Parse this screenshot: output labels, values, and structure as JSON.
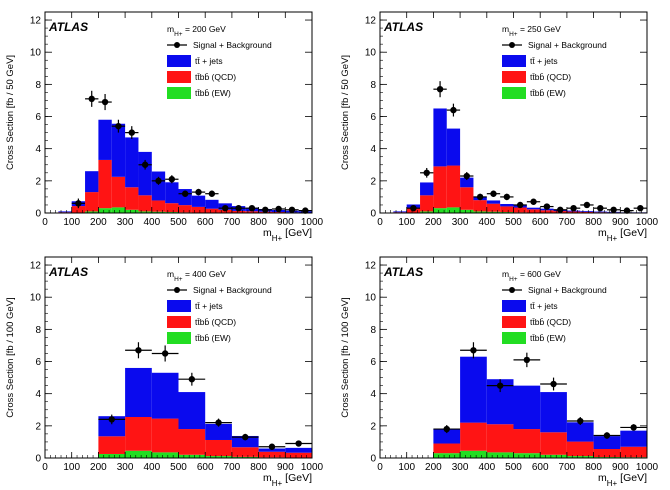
{
  "chart_data": [
    {
      "type": "bar",
      "stacked": true,
      "panel_label": "ATLAS",
      "mass_label": "m_H+ = 200 GeV",
      "mass_label_text": "m",
      "mass_label_sub": "H+",
      "mass_label_value": " = 200 GeV",
      "xlabel": "m",
      "xlabel_sub": "H+",
      "xlabel_unit": " [GeV]",
      "ylabel": "Cross Section [fb / 50 GeV]",
      "xlim": [
        0,
        1000
      ],
      "ylim": [
        0,
        12.5
      ],
      "xticks": [
        0,
        100,
        200,
        300,
        400,
        500,
        600,
        700,
        800,
        900,
        1000
      ],
      "yticks": [
        0,
        2,
        4,
        6,
        8,
        10,
        12
      ],
      "bin_edges": [
        0,
        50,
        100,
        150,
        200,
        250,
        300,
        350,
        400,
        450,
        500,
        550,
        600,
        650,
        700,
        750,
        800,
        850,
        900,
        950,
        1000
      ],
      "series": [
        {
          "name": "tt̄bb̄ (EW)",
          "color": "#22dd22",
          "values": [
            0,
            0,
            0.03,
            0.1,
            0.3,
            0.35,
            0.2,
            0.1,
            0.08,
            0.06,
            0.04,
            0.03,
            0.02,
            0.02,
            0.01,
            0.01,
            0.01,
            0.01,
            0,
            0
          ]
        },
        {
          "name": "tt̄bb̄ (QCD)",
          "color": "#ff1414",
          "values": [
            0,
            0.05,
            0.4,
            1.2,
            3.0,
            1.9,
            1.4,
            1.0,
            0.7,
            0.55,
            0.45,
            0.35,
            0.25,
            0.18,
            0.12,
            0.1,
            0.07,
            0.05,
            0.04,
            0.03
          ]
        },
        {
          "name": "tt̄ + jets",
          "color": "#0a0aee",
          "values": [
            0,
            0.05,
            0.3,
            1.3,
            2.5,
            3.3,
            3.1,
            2.7,
            1.8,
            1.3,
            1.0,
            0.7,
            0.55,
            0.4,
            0.3,
            0.22,
            0.17,
            0.13,
            0.1,
            0.08
          ]
        }
      ],
      "data_points": {
        "name": "Signal + Background",
        "x": [
          125,
          175,
          225,
          275,
          325,
          375,
          425,
          475,
          525,
          575,
          625,
          675,
          725,
          775,
          825,
          875,
          925,
          975
        ],
        "y": [
          0.6,
          7.1,
          6.9,
          5.4,
          5.0,
          3.0,
          2.0,
          2.1,
          1.2,
          1.3,
          1.2,
          0.3,
          0.3,
          0.3,
          0.2,
          0.25,
          0.2,
          0.15
        ],
        "yerr": [
          0.3,
          0.5,
          0.5,
          0.4,
          0.4,
          0.3,
          0.25,
          0.25,
          0.2,
          0.2,
          0.2,
          0.1,
          0.1,
          0.1,
          0.1,
          0.1,
          0.1,
          0.1
        ]
      },
      "legend": {
        "items": [
          "Signal + Background",
          "tt̄ + jets",
          "tt̄bb̄ (QCD)",
          "tt̄bb̄ (EW)"
        ]
      }
    },
    {
      "type": "bar",
      "stacked": true,
      "panel_label": "ATLAS",
      "mass_label": "m_H+ = 250 GeV",
      "mass_label_text": "m",
      "mass_label_sub": "H+",
      "mass_label_value": " = 250 GeV",
      "xlabel": "m",
      "xlabel_sub": "H+",
      "xlabel_unit": " [GeV]",
      "ylabel": "Cross Section [fb / 50 GeV]",
      "xlim": [
        0,
        1000
      ],
      "ylim": [
        0,
        12.5
      ],
      "xticks": [
        0,
        100,
        200,
        300,
        400,
        500,
        600,
        700,
        800,
        900,
        1000
      ],
      "yticks": [
        0,
        2,
        4,
        6,
        8,
        10,
        12
      ],
      "bin_edges": [
        0,
        50,
        100,
        150,
        200,
        250,
        300,
        350,
        400,
        450,
        500,
        550,
        600,
        650,
        700,
        750,
        800,
        850,
        900,
        950,
        1000
      ],
      "series": [
        {
          "name": "tt̄bb̄ (EW)",
          "color": "#22dd22",
          "values": [
            0,
            0,
            0.03,
            0.1,
            0.3,
            0.35,
            0.2,
            0.1,
            0.08,
            0.06,
            0.04,
            0.03,
            0.02,
            0.02,
            0.01,
            0.01,
            0.01,
            0.01,
            0,
            0
          ]
        },
        {
          "name": "tt̄bb̄ (QCD)",
          "color": "#ff1414",
          "values": [
            0,
            0.05,
            0.3,
            1.0,
            2.6,
            2.6,
            1.4,
            0.7,
            0.5,
            0.35,
            0.3,
            0.2,
            0.15,
            0.1,
            0.08,
            0.06,
            0.04,
            0.03,
            0.02,
            0.02
          ]
        },
        {
          "name": "tt̄ + jets",
          "color": "#0a0aee",
          "values": [
            0,
            0.05,
            0.2,
            0.8,
            3.6,
            2.3,
            0.6,
            0.2,
            0.2,
            0.15,
            0.15,
            0.1,
            0.1,
            0.08,
            0.06,
            0.05,
            0.04,
            0.03,
            0.02,
            0.02
          ]
        }
      ],
      "data_points": {
        "name": "Signal + Background",
        "x": [
          125,
          175,
          225,
          275,
          325,
          375,
          425,
          475,
          525,
          575,
          625,
          675,
          725,
          775,
          825,
          875,
          925,
          975
        ],
        "y": [
          0.3,
          2.5,
          7.7,
          6.4,
          2.3,
          1.0,
          1.2,
          1.0,
          0.5,
          0.7,
          0.4,
          0.2,
          0.3,
          0.5,
          0.3,
          0.2,
          0.15,
          0.3
        ],
        "yerr": [
          0.15,
          0.3,
          0.5,
          0.4,
          0.25,
          0.2,
          0.2,
          0.2,
          0.15,
          0.15,
          0.12,
          0.1,
          0.1,
          0.12,
          0.1,
          0.1,
          0.1,
          0.1
        ]
      },
      "legend": {
        "items": [
          "Signal + Background",
          "tt̄ + jets",
          "tt̄bb̄ (QCD)",
          "tt̄bb̄ (EW)"
        ]
      }
    },
    {
      "type": "bar",
      "stacked": true,
      "panel_label": "ATLAS",
      "mass_label": "m_H+ = 400 GeV",
      "mass_label_text": "m",
      "mass_label_sub": "H+",
      "mass_label_value": " = 400 GeV",
      "xlabel": "m",
      "xlabel_sub": "H+",
      "xlabel_unit": " [GeV]",
      "ylabel": "Cross Section [fb / 100 GeV]",
      "xlim": [
        0,
        1000
      ],
      "ylim": [
        0,
        12.5
      ],
      "xticks": [
        0,
        100,
        200,
        300,
        400,
        500,
        600,
        700,
        800,
        900,
        1000
      ],
      "yticks": [
        0,
        2,
        4,
        6,
        8,
        10,
        12
      ],
      "bin_edges": [
        200,
        300,
        400,
        500,
        600,
        700,
        800,
        900,
        1000
      ],
      "series": [
        {
          "name": "tt̄bb̄ (EW)",
          "color": "#22dd22",
          "values": [
            0.25,
            0.45,
            0.35,
            0.2,
            0.12,
            0.07,
            0.04,
            0.03
          ]
        },
        {
          "name": "tt̄bb̄ (QCD)",
          "color": "#ff1414",
          "values": [
            1.1,
            2.1,
            2.1,
            1.6,
            1.0,
            0.6,
            0.35,
            0.3
          ]
        },
        {
          "name": "tt̄ + jets",
          "color": "#0a0aee",
          "values": [
            1.25,
            3.05,
            2.85,
            2.3,
            1.0,
            0.7,
            0.2,
            0.3
          ]
        }
      ],
      "data_points": {
        "name": "Signal + Background",
        "x": [
          250,
          350,
          450,
          550,
          650,
          750,
          850,
          950
        ],
        "y": [
          2.4,
          6.7,
          6.5,
          4.9,
          2.2,
          1.3,
          0.7,
          0.9
        ],
        "yerr": [
          0.3,
          0.5,
          0.5,
          0.4,
          0.25,
          0.2,
          0.15,
          0.15
        ]
      },
      "legend": {
        "items": [
          "Signal + Background",
          "tt̄ + jets",
          "tt̄bb̄ (QCD)",
          "tt̄bb̄ (EW)"
        ]
      }
    },
    {
      "type": "bar",
      "stacked": true,
      "panel_label": "ATLAS",
      "mass_label": "m_H+ = 600 GeV",
      "mass_label_text": "m",
      "mass_label_sub": "H+",
      "mass_label_value": " = 600 GeV",
      "xlabel": "m",
      "xlabel_sub": "H+",
      "xlabel_unit": " [GeV]",
      "ylabel": "Cross Section [fb / 100 GeV]",
      "xlim": [
        0,
        1000
      ],
      "ylim": [
        0,
        12.5
      ],
      "xticks": [
        0,
        100,
        200,
        300,
        400,
        500,
        600,
        700,
        800,
        900,
        1000
      ],
      "yticks": [
        0,
        2,
        4,
        6,
        8,
        10,
        12
      ],
      "bin_edges": [
        200,
        300,
        400,
        500,
        600,
        700,
        800,
        900,
        1000
      ],
      "series": [
        {
          "name": "tt̄bb̄ (EW)",
          "color": "#22dd22",
          "values": [
            0.3,
            0.45,
            0.35,
            0.3,
            0.2,
            0.12,
            0.06,
            0.05
          ]
        },
        {
          "name": "tt̄bb̄ (QCD)",
          "color": "#ff1414",
          "values": [
            0.6,
            1.75,
            1.75,
            1.5,
            1.4,
            0.9,
            0.5,
            0.65
          ]
        },
        {
          "name": "tt̄ + jets",
          "color": "#0a0aee",
          "values": [
            0.9,
            4.1,
            2.8,
            2.7,
            2.5,
            1.2,
            0.8,
            1.0
          ]
        }
      ],
      "data_points": {
        "name": "Signal + Background",
        "x": [
          250,
          350,
          450,
          550,
          650,
          750,
          850,
          950
        ],
        "y": [
          1.8,
          6.7,
          4.5,
          6.1,
          4.6,
          2.3,
          1.4,
          1.9
        ],
        "yerr": [
          0.25,
          0.5,
          0.4,
          0.45,
          0.4,
          0.25,
          0.2,
          0.2
        ]
      },
      "legend": {
        "items": [
          "Signal + Background",
          "tt̄ + jets",
          "tt̄bb̄ (QCD)",
          "tt̄bb̄ (EW)"
        ]
      }
    }
  ]
}
